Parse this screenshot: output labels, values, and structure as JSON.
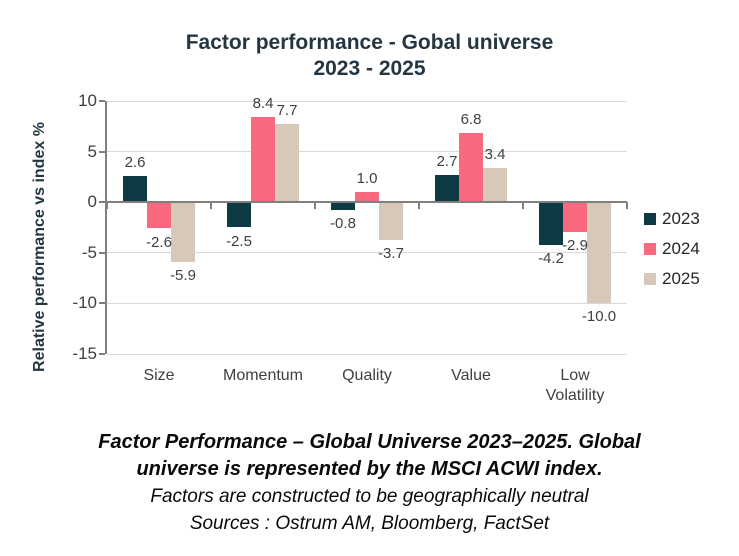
{
  "header": {
    "title_line1": "Factor performance - Gobal universe",
    "title_line2": "2023 - 2025"
  },
  "chart_data": {
    "type": "bar",
    "title": "Factor performance - Gobal universe 2023 - 2025",
    "categories": [
      "Size",
      "Momentum",
      "Quality",
      "Value",
      "Low\nVolatility"
    ],
    "series": [
      {
        "name": "2023",
        "color": "#0d3a43",
        "values": [
          2.6,
          -2.5,
          -0.8,
          2.7,
          -4.2
        ]
      },
      {
        "name": "2024",
        "color": "#f9687e",
        "values": [
          -2.6,
          8.4,
          1.0,
          6.8,
          -2.9
        ]
      },
      {
        "name": "2025",
        "color": "#d7c8ba",
        "values": [
          -5.9,
          7.7,
          -3.7,
          3.4,
          -10.0
        ]
      }
    ],
    "xlabel": "",
    "ylabel": "Relative performance vs index %",
    "ylim": [
      -15,
      10
    ],
    "yticks": [
      10,
      5,
      0,
      -5,
      -10,
      -15
    ],
    "value_label_decimals": 1,
    "grid": true,
    "legend_position": "right",
    "colors": {
      "gridline": "#d9d9d9",
      "axis": "#7f7f7f",
      "tick_label": "#404040",
      "title_text": "#233642"
    }
  },
  "caption": {
    "bold_line1": "Factor Performance – Global Universe 2023–2025. Global",
    "bold_line2": "universe is represented by the MSCI ACWI index.",
    "italic_line1": "Factors are constructed to be geographically neutral",
    "italic_line2": "Sources : Ostrum AM, Bloomberg, FactSet"
  }
}
